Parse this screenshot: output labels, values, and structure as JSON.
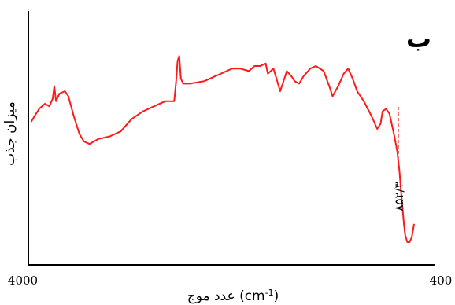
{
  "chart_data": {
    "type": "line",
    "panel_label": "ب",
    "xlabel": "عدد موج (cm-1)",
    "ylabel": "میزان جذب",
    "x_tick_labels": [
      "4000",
      "400"
    ],
    "xlim": [
      4000,
      400
    ],
    "grid": false,
    "annotations": [
      {
        "text": "۸۵۲/۳",
        "x": 852.3
      }
    ],
    "series": [
      {
        "color": "#ff1a1a",
        "points": [
          [
            4000,
            0.58
          ],
          [
            3960,
            0.61
          ],
          [
            3930,
            0.63
          ],
          [
            3880,
            0.65
          ],
          [
            3840,
            0.64
          ],
          [
            3810,
            0.67
          ],
          [
            3795,
            0.72
          ],
          [
            3780,
            0.66
          ],
          [
            3750,
            0.69
          ],
          [
            3700,
            0.7
          ],
          [
            3670,
            0.68
          ],
          [
            3620,
            0.6
          ],
          [
            3570,
            0.53
          ],
          [
            3530,
            0.5
          ],
          [
            3480,
            0.49
          ],
          [
            3400,
            0.51
          ],
          [
            3300,
            0.52
          ],
          [
            3200,
            0.54
          ],
          [
            3100,
            0.59
          ],
          [
            3000,
            0.62
          ],
          [
            2900,
            0.64
          ],
          [
            2800,
            0.66
          ],
          [
            2720,
            0.66
          ],
          [
            2705,
            0.73
          ],
          [
            2690,
            0.82
          ],
          [
            2675,
            0.84
          ],
          [
            2660,
            0.75
          ],
          [
            2640,
            0.73
          ],
          [
            2580,
            0.73
          ],
          [
            2450,
            0.74
          ],
          [
            2300,
            0.77
          ],
          [
            2200,
            0.79
          ],
          [
            2130,
            0.79
          ],
          [
            2050,
            0.78
          ],
          [
            2000,
            0.8
          ],
          [
            1950,
            0.8
          ],
          [
            1900,
            0.81
          ],
          [
            1880,
            0.77
          ],
          [
            1830,
            0.79
          ],
          [
            1810,
            0.76
          ],
          [
            1770,
            0.7
          ],
          [
            1740,
            0.74
          ],
          [
            1710,
            0.78
          ],
          [
            1670,
            0.76
          ],
          [
            1640,
            0.74
          ],
          [
            1600,
            0.73
          ],
          [
            1560,
            0.76
          ],
          [
            1500,
            0.79
          ],
          [
            1450,
            0.8
          ],
          [
            1380,
            0.78
          ],
          [
            1330,
            0.72
          ],
          [
            1300,
            0.68
          ],
          [
            1250,
            0.72
          ],
          [
            1200,
            0.77
          ],
          [
            1160,
            0.79
          ],
          [
            1120,
            0.75
          ],
          [
            1080,
            0.7
          ],
          [
            1020,
            0.66
          ],
          [
            950,
            0.6
          ],
          [
            900,
            0.55
          ],
          [
            870,
            0.57
          ],
          [
            852,
            0.62
          ],
          [
            820,
            0.63
          ],
          [
            790,
            0.61
          ],
          [
            750,
            0.53
          ],
          [
            720,
            0.46
          ],
          [
            700,
            0.38
          ],
          [
            680,
            0.27
          ],
          [
            660,
            0.17
          ],
          [
            650,
            0.13
          ],
          [
            630,
            0.1
          ],
          [
            610,
            0.1
          ],
          [
            590,
            0.12
          ],
          [
            570,
            0.17
          ]
        ]
      }
    ]
  }
}
